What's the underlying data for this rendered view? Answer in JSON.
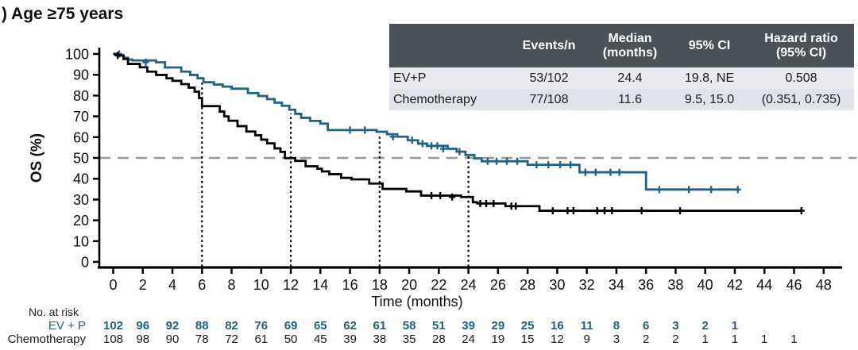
{
  "title": ") Age ≥75 years",
  "colors": {
    "evp_accent": "#1f6387",
    "chemo": "#000000",
    "median_line": "#999999",
    "table_header_bg": "#4a5257",
    "table_row1_bg": "#e9eaf0",
    "table_row2_bg": "#e1e3ea",
    "table_header_text": "#ffffff"
  },
  "stats_table": {
    "headers": [
      [
        ""
      ],
      [
        "Events/n"
      ],
      [
        "Median",
        "(months)"
      ],
      [
        "95% CI"
      ],
      [
        "Hazard ratio",
        "(95% CI)"
      ]
    ],
    "rows": [
      [
        "EV+P",
        "53/102",
        "24.4",
        "19.8, NE",
        "0.508"
      ],
      [
        "Chemotherapy",
        "77/108",
        "11.6",
        "9.5, 15.0",
        "(0.351, 0.735)"
      ]
    ]
  },
  "chart_data": {
    "type": "line",
    "subtype": "kaplan-meier-step",
    "title": ") Age ≥75 years",
    "xlabel": "Time (months)",
    "ylabel": "OS (%)",
    "xlim": [
      0,
      48
    ],
    "ylim": [
      0,
      100
    ],
    "xtick_step": 2,
    "ytick_step": 10,
    "grid": false,
    "reference_lines": {
      "horizontal_pct": 50,
      "vertical_months": [
        6,
        12,
        18,
        24
      ],
      "vertical_top_pct": [
        86.2,
        71.4,
        61.2,
        50.8
      ]
    },
    "series": [
      {
        "name": "EV+P",
        "color": "#1f6387",
        "end_month": 42.2,
        "steps": [
          [
            0,
            100
          ],
          [
            0.3,
            99.2
          ],
          [
            0.7,
            98.2
          ],
          [
            1.0,
            97.3
          ],
          [
            1.3,
            96.9
          ],
          [
            2.9,
            96.0
          ],
          [
            3.5,
            93.5
          ],
          [
            4.6,
            91.5
          ],
          [
            5.2,
            89.9
          ],
          [
            5.7,
            88.3
          ],
          [
            6.1,
            86.4
          ],
          [
            6.8,
            85.3
          ],
          [
            7.4,
            84.3
          ],
          [
            8.0,
            83.3
          ],
          [
            9.1,
            81.2
          ],
          [
            9.8,
            79.8
          ],
          [
            10.4,
            78.3
          ],
          [
            10.9,
            76.6
          ],
          [
            11.4,
            75.1
          ],
          [
            11.9,
            73.2
          ],
          [
            12.3,
            71.2
          ],
          [
            12.7,
            69.3
          ],
          [
            13.3,
            67.8
          ],
          [
            14.0,
            66.5
          ],
          [
            14.5,
            63.4
          ],
          [
            17.8,
            62.6
          ],
          [
            18.5,
            61.4
          ],
          [
            19.2,
            60.2
          ],
          [
            19.9,
            58.5
          ],
          [
            20.6,
            56.9
          ],
          [
            21.2,
            55.8
          ],
          [
            22.6,
            54.4
          ],
          [
            23.2,
            53.0
          ],
          [
            23.8,
            51.4
          ],
          [
            24.4,
            49.8
          ],
          [
            24.9,
            48.4
          ],
          [
            28.0,
            46.7
          ],
          [
            31.5,
            43.1
          ],
          [
            36.0,
            34.8
          ]
        ],
        "censors": [
          [
            0.4,
            100
          ],
          [
            2.2,
            96.0
          ],
          [
            16.0,
            63.4
          ],
          [
            17.0,
            63.4
          ],
          [
            18.9,
            60.2
          ],
          [
            20.2,
            58.5
          ],
          [
            20.9,
            56.9
          ],
          [
            21.5,
            55.8
          ],
          [
            21.9,
            55.8
          ],
          [
            22.3,
            54.4
          ],
          [
            23.4,
            53.0
          ],
          [
            25.3,
            48.4
          ],
          [
            25.9,
            48.4
          ],
          [
            26.6,
            48.4
          ],
          [
            27.3,
            48.4
          ],
          [
            28.6,
            46.7
          ],
          [
            29.4,
            46.7
          ],
          [
            30.2,
            46.7
          ],
          [
            30.9,
            46.7
          ],
          [
            31.9,
            43.1
          ],
          [
            32.6,
            43.1
          ],
          [
            33.6,
            43.1
          ],
          [
            34.2,
            43.1
          ],
          [
            36.9,
            34.8
          ],
          [
            38.9,
            34.8
          ],
          [
            40.4,
            34.8
          ],
          [
            42.2,
            34.8
          ]
        ]
      },
      {
        "name": "Chemotherapy",
        "color": "#000000",
        "end_month": 46.5,
        "steps": [
          [
            0,
            100
          ],
          [
            0.3,
            99.3
          ],
          [
            0.7,
            97.6
          ],
          [
            1.0,
            95.2
          ],
          [
            1.8,
            93.6
          ],
          [
            2.3,
            91.5
          ],
          [
            2.9,
            89.9
          ],
          [
            3.6,
            88.3
          ],
          [
            4.0,
            87.1
          ],
          [
            4.6,
            85.5
          ],
          [
            5.1,
            83.8
          ],
          [
            5.5,
            81.9
          ],
          [
            5.8,
            78.8
          ],
          [
            6.0,
            74.9
          ],
          [
            7.2,
            72.3
          ],
          [
            7.5,
            70.0
          ],
          [
            7.8,
            67.9
          ],
          [
            8.4,
            65.3
          ],
          [
            9.0,
            62.7
          ],
          [
            9.6,
            60.9
          ],
          [
            10.0,
            58.8
          ],
          [
            10.4,
            57.0
          ],
          [
            10.9,
            54.6
          ],
          [
            11.3,
            52.9
          ],
          [
            11.6,
            49.9
          ],
          [
            12.3,
            48.6
          ],
          [
            13.0,
            46.0
          ],
          [
            13.8,
            44.8
          ],
          [
            14.1,
            43.5
          ],
          [
            14.6,
            42.2
          ],
          [
            15.4,
            40.4
          ],
          [
            16.1,
            39.7
          ],
          [
            17.3,
            37.7
          ],
          [
            18.2,
            35.1
          ],
          [
            19.8,
            33.9
          ],
          [
            20.8,
            31.9
          ],
          [
            23.5,
            31.2
          ],
          [
            24.3,
            28.7
          ],
          [
            24.6,
            28.1
          ],
          [
            26.5,
            26.8
          ],
          [
            28.8,
            24.6
          ]
        ],
        "censors": [
          [
            0.3,
            99.3
          ],
          [
            21.5,
            31.9
          ],
          [
            22.1,
            31.9
          ],
          [
            22.9,
            31.2
          ],
          [
            24.8,
            28.1
          ],
          [
            25.2,
            28.1
          ],
          [
            25.7,
            28.1
          ],
          [
            26.9,
            26.8
          ],
          [
            27.2,
            26.8
          ],
          [
            29.7,
            24.6
          ],
          [
            30.7,
            24.6
          ],
          [
            31.1,
            24.6
          ],
          [
            32.7,
            24.6
          ],
          [
            33.2,
            24.6
          ],
          [
            33.7,
            24.6
          ],
          [
            35.7,
            24.6
          ],
          [
            38.3,
            24.6
          ],
          [
            46.5,
            24.6
          ]
        ]
      }
    ],
    "risk_table": {
      "label": "No. at risk",
      "start_month": 0,
      "month_step": 2,
      "rows": [
        {
          "name": "EV + P",
          "color": "#1f6387",
          "bold": true,
          "values": [
            102,
            96,
            92,
            88,
            82,
            76,
            69,
            65,
            62,
            61,
            58,
            51,
            39,
            29,
            25,
            16,
            11,
            8,
            6,
            3,
            2,
            1
          ]
        },
        {
          "name": "Chemotherapy",
          "color": "#1a1a1a",
          "bold": false,
          "values": [
            108,
            98,
            90,
            78,
            72,
            61,
            50,
            45,
            39,
            38,
            35,
            28,
            24,
            19,
            15,
            12,
            9,
            3,
            2,
            2,
            1,
            1,
            1,
            1
          ]
        }
      ]
    }
  }
}
